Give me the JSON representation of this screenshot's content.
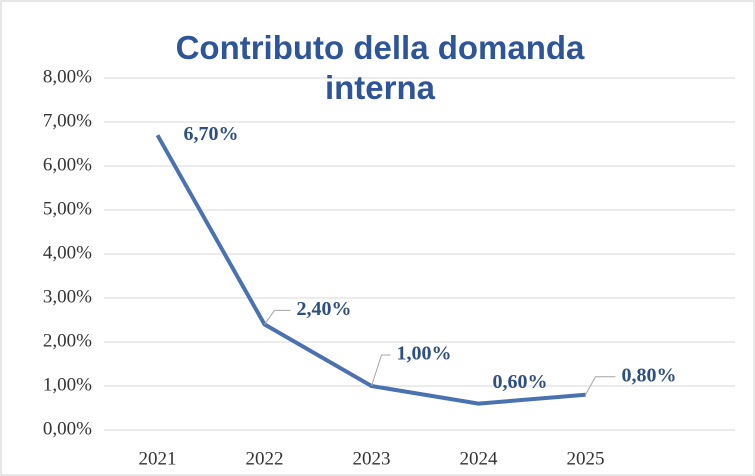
{
  "chart_data": {
    "type": "line",
    "title": "Contributo della domanda interna",
    "categories": [
      "2021",
      "2022",
      "2023",
      "2024",
      "2025"
    ],
    "series": [
      {
        "name": "Contributo della domanda interna",
        "color": "#4a72b0",
        "values": [
          6.7,
          2.4,
          1.0,
          0.6,
          0.8
        ],
        "value_labels": [
          "6,70%",
          "2,40%",
          "1,00%",
          "0,60%",
          "0,80%"
        ]
      }
    ],
    "ylim": [
      0,
      8
    ],
    "yticks": [
      {
        "value": 0,
        "label": "0,00%"
      },
      {
        "value": 1,
        "label": "1,00%"
      },
      {
        "value": 2,
        "label": "2,00%"
      },
      {
        "value": 3,
        "label": "3,00%"
      },
      {
        "value": 4,
        "label": "4,00%"
      },
      {
        "value": 5,
        "label": "5,00%"
      },
      {
        "value": 6,
        "label": "6,00%"
      },
      {
        "value": 7,
        "label": "7,00%"
      },
      {
        "value": 8,
        "label": "8,00%"
      }
    ],
    "grid": true
  }
}
